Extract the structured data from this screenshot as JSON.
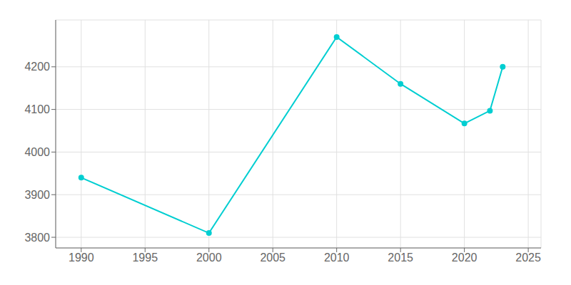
{
  "chart_data": {
    "type": "line",
    "x": [
      1990,
      2000,
      2010,
      2015,
      2020,
      2022,
      2023
    ],
    "values": [
      3940,
      3810,
      4270,
      4160,
      4067,
      4097,
      4200
    ],
    "color": "#00CED1",
    "marker": "circle",
    "xlim": [
      1988,
      2026
    ],
    "ylim": [
      3775,
      4310
    ],
    "xticks": [
      1990,
      1995,
      2000,
      2005,
      2010,
      2015,
      2020,
      2025
    ],
    "yticks": [
      3800,
      3900,
      4000,
      4100,
      4200
    ],
    "grid": true
  }
}
